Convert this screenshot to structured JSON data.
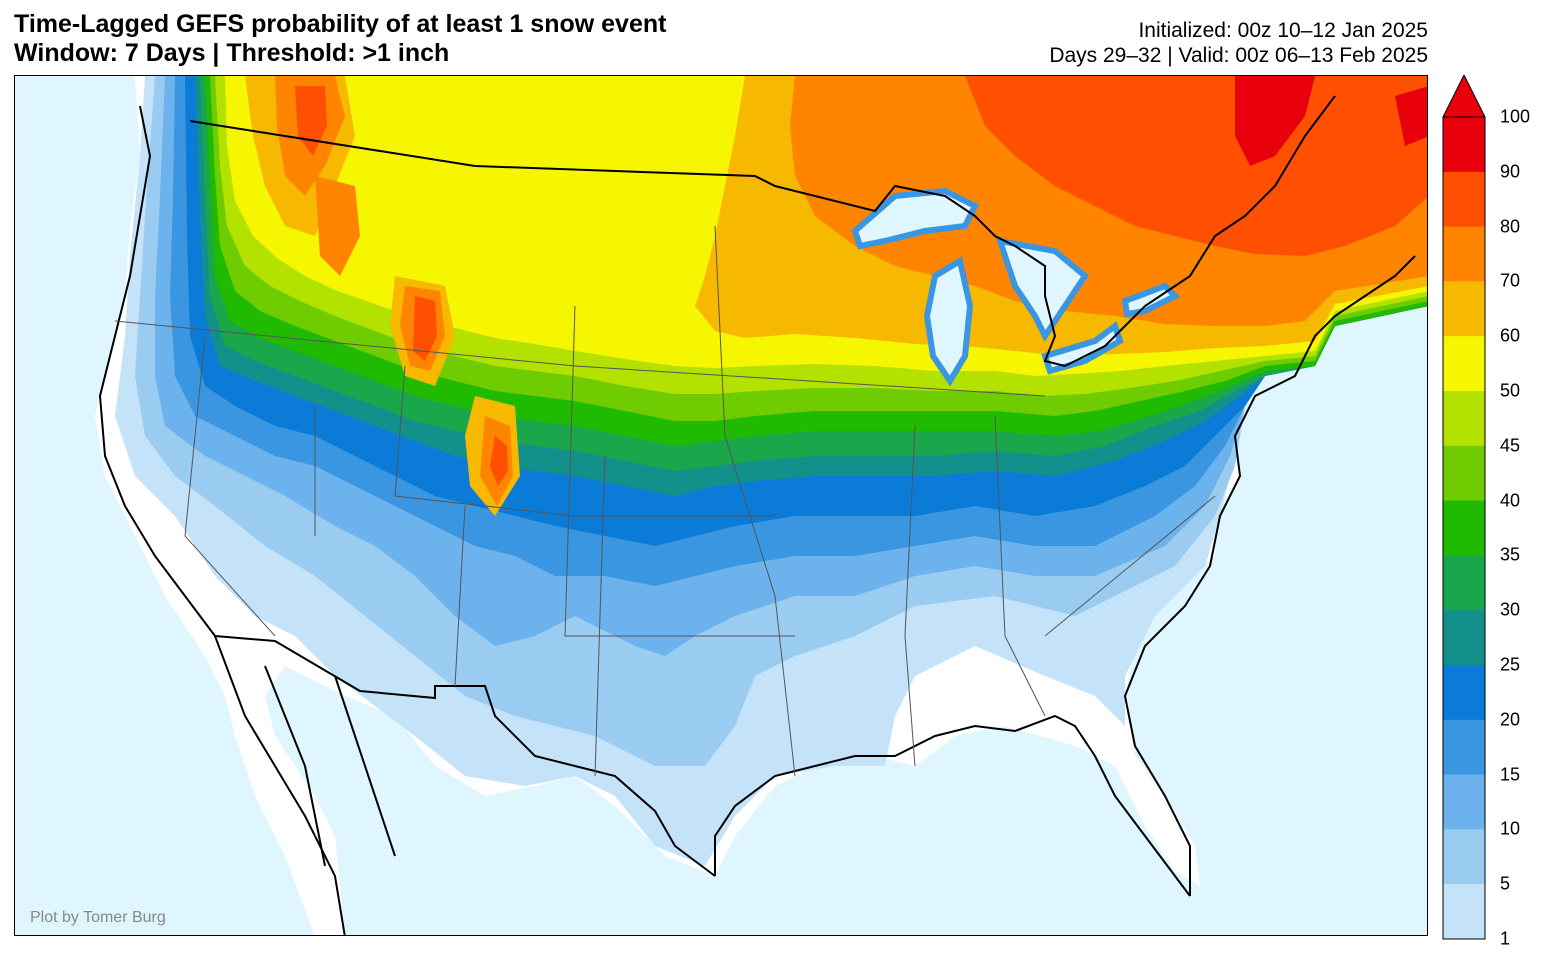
{
  "title": {
    "line1": "Time-Lagged GEFS probability of at least 1 snow event",
    "line2": "Window: 7 Days | Threshold: >1 inch"
  },
  "info": {
    "initialized": "Initialized: 00z 10–12 Jan 2025",
    "valid": "Days 29–32 | Valid: 00z 06–13 Feb 2025"
  },
  "credit": "Plot by Tomer Burg",
  "colorbar": {
    "levels": [
      {
        "value": "100",
        "color": "#e8000c"
      },
      {
        "value": "90",
        "color": "#ff4f00"
      },
      {
        "value": "80",
        "color": "#ff8400"
      },
      {
        "value": "70",
        "color": "#f7b800"
      },
      {
        "value": "60",
        "color": "#f6f600"
      },
      {
        "value": "50",
        "color": "#b4e200"
      },
      {
        "value": "45",
        "color": "#6ecc00"
      },
      {
        "value": "40",
        "color": "#20ba00"
      },
      {
        "value": "35",
        "color": "#1aa64a"
      },
      {
        "value": "30",
        "color": "#13908c"
      },
      {
        "value": "25",
        "color": "#0a7cd8"
      },
      {
        "value": "20",
        "color": "#3a96e0"
      },
      {
        "value": "15",
        "color": "#6cb2ec"
      },
      {
        "value": "10",
        "color": "#9accf2"
      },
      {
        "value": "5",
        "color": "#c4e2f8"
      },
      {
        "value": "1",
        "color": ""
      }
    ],
    "overflow_color": "#e8000c"
  },
  "map_colors": {
    "ocean": "#dff6ff",
    "land_none": "#ffffff",
    "state_line": "#555555",
    "coast_line": "#000000"
  }
}
